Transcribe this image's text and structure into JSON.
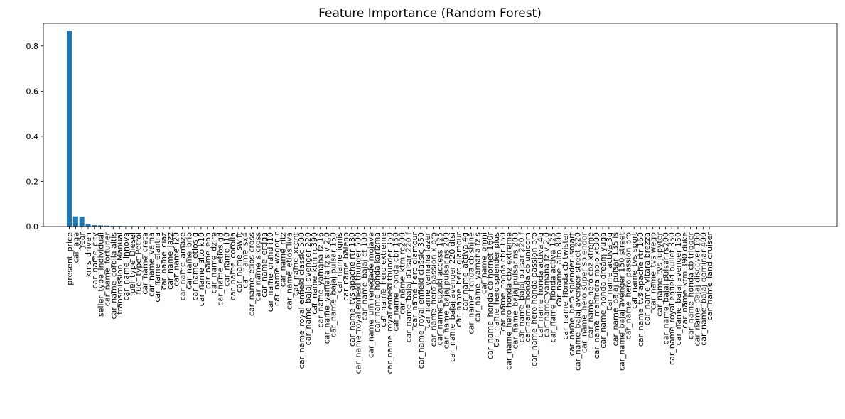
{
  "chart_data": {
    "type": "bar",
    "title": "Feature Importance (Random Forest)",
    "xlabel": "",
    "ylabel": "",
    "ylim": [
      0,
      0.9
    ],
    "yticks": [
      0.0,
      0.2,
      0.4,
      0.6,
      0.8
    ],
    "ytick_labels": [
      "0.0",
      "0.2",
      "0.4",
      "0.6",
      "0.8"
    ],
    "grid": false,
    "bar_color": "#1f77b4",
    "categories": [
      "present_price",
      "car_age",
      "Year",
      "kms_driven",
      "car_name_city",
      "seller_type_Individual",
      "car_name_fortuner",
      "car_name_corolla altis",
      "transmission_Manual",
      "car_name_innova",
      "fuel_type_Diesel",
      "fuel_type_Petrol",
      "car_name_creta",
      "car_name_verna",
      "car_name_elantra",
      "car_name_ciaz",
      "car_name_jazz",
      "car_name_i20",
      "car_name_amaze",
      "car_name_brio",
      "car_name_etios g",
      "car_name_alto k10",
      "car_name_eon",
      "car_name_dzire",
      "car_name_etios gd",
      "car_name_i10",
      "car_name_corolla",
      "car_name_swift",
      "car_name_sx4",
      "car_name_etios cross",
      "car_name_s cross",
      "car_name_ertiga",
      "car_name_grand i10",
      "car_name_wagon r",
      "car_name_ritz",
      "car_name_etios liva",
      "car_name_xcent",
      "car_name_royal enfield classic 500",
      "car_name_bajaj avenger 220",
      "car_name_ktm rc390",
      "car_name_yamaha fz 16",
      "car_name_yamaha fz s v 2.0",
      "car_name_bajaj pulsar 150",
      "car_name_ignis",
      "car_name_baleno",
      "car_name_tvs apache rtr 180",
      "car_name_royal enfield thunder 500",
      "car_name_bajaj ct 100",
      "car_name_um renegade mojave",
      "car_name_honda karizma",
      "car_name_hero extreme",
      "car_name_royal enfield thunder 350",
      "car_name_honda cbr 150",
      "car_name_ktm rc200",
      "car_name_bajaj pulsar 220 f",
      "car_name_hero glamour",
      "car_name_royal enfield classic 350",
      "car_name_yamaha fazer",
      "car_name_hero passion x pro",
      "car_name_suzuki access 125",
      "car_name_bajaj pulsar ns 200",
      "car_name_bajaj avenger 220 dtsi",
      "car_name_hero glamour",
      "car_name_activa 4g",
      "car_name_honda cb shine",
      "car_name_yamaha fz s",
      "car_name_omni",
      "car_name_honda cb hornet 160r",
      "car_name_hero splender plus",
      "car_name_honda cbr 150",
      "car_name_hero honda cbz extreme",
      "car_name_bajaj pulsar ns 200",
      "car_name_bajaj pulsar 220 f",
      "car_name_honda cb unicorn",
      "car_name_hero honda passion pro",
      "car_name_honda activa 4g",
      "car_name_yamaha fz v 2.0",
      "car_name_honda activa 125",
      "car_name_alto 800",
      "car_name_honda cb twister",
      "car_name_hero splender ismart",
      "car_name_bajaj avenger street 220",
      "car_name_hero super splendor",
      "car_name_hero cbz xtreme",
      "car_name_mahindra mojo xt300",
      "car_name_honda dream yuga",
      "car_name_activa 3g",
      "car_name_bajaj pulsar 135 ls",
      "car_name_bajaj avenger 150 street",
      "car_name_hero passion pro",
      "car_name_tvs sport",
      "car_name_tvs apache rtr 160",
      "car_name_vitara brezza",
      "car_name_tvs wego",
      "car_name_tvs jupyter",
      "car_name_bajaj pulsar rs200",
      "car_name_royal enfield bullet 350",
      "car_name_bajaj avenger 150",
      "car_name_ktm 390 duke",
      "car_name_honda cb trigger",
      "car_name_bajaj discover 100",
      "car_name_bajaj dominar 400",
      "car_name_land cruiser"
    ],
    "values": [
      0.868,
      0.045,
      0.044,
      0.012,
      0.006,
      0.005,
      0.004,
      0.003,
      0.003,
      0.002,
      0.002,
      0.0015,
      0.001,
      0.001,
      0.001,
      0.0008,
      0.0007,
      0.0006,
      0.0006,
      0.0005,
      0.0005,
      0.0004,
      0.0004,
      0.0003,
      0.0003,
      0.0003,
      0.0003,
      0.0002,
      0.0002,
      0.0002,
      0.0002,
      0.0002,
      0.0002,
      0.0001,
      0.0001,
      0.0001,
      0.0001,
      0.0001,
      0.0001,
      0.0001,
      0.0001,
      0.0001,
      0.0001,
      0.0001,
      0.0001,
      0.0001,
      0.0001,
      0.0001,
      0.0001,
      0.0001,
      0.0001,
      0.0001,
      0.0001,
      0.0001,
      0.0001,
      0.0001,
      0.0001,
      0.0001,
      0.0001,
      0.0001,
      0.0001,
      0.0001,
      0.0001,
      0.0001,
      0.0001,
      0.0001,
      0.0001,
      0.0001,
      0.0001,
      0.0001,
      0.0001,
      0.0001,
      0.0001,
      0.0001,
      0.0001,
      0.0001,
      0.0001,
      0.0001,
      0.0001,
      0.0001,
      0.0001,
      0.0001,
      0.0001,
      0.0001,
      0.0001,
      0.0001,
      0.0001,
      0.0001,
      0.0001,
      0.0001,
      0.0001,
      0.0001,
      0.0001,
      0.0001,
      0.0001,
      0.0001,
      0.0001,
      0.0001,
      0.0001,
      0.0001,
      0.0001,
      0.0001,
      0.0001
    ]
  }
}
